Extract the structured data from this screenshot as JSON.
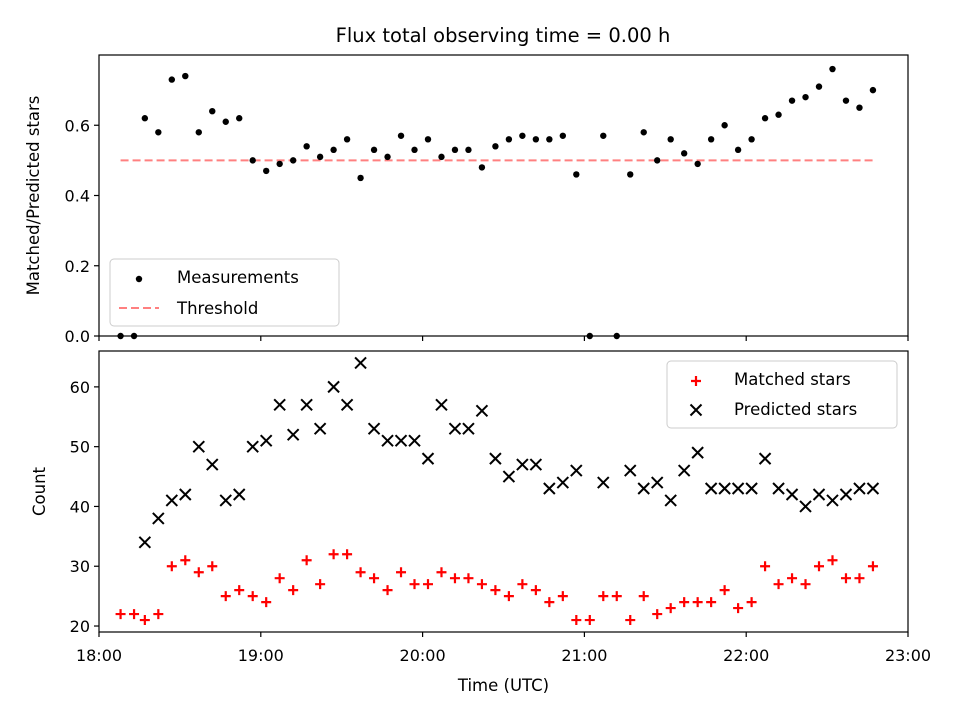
{
  "title": "Flux total observing time = 0.00 h",
  "chart_data": [
    {
      "type": "scatter",
      "ylabel": "Matched/Predicted stars",
      "ylim": [
        0,
        0.8
      ],
      "yticks": [
        0.0,
        0.2,
        0.4,
        0.6
      ],
      "ytick_labels": [
        "0.0",
        "0.2",
        "0.4",
        "0.6"
      ],
      "x": [
        "18:08",
        "18:13",
        "18:17",
        "18:22",
        "18:27",
        "18:32",
        "18:37",
        "18:42",
        "18:47",
        "18:52",
        "18:57",
        "19:02",
        "19:07",
        "19:12",
        "19:17",
        "19:22",
        "19:27",
        "19:32",
        "19:37",
        "19:42",
        "19:47",
        "19:52",
        "19:57",
        "20:02",
        "20:07",
        "20:12",
        "20:17",
        "20:22",
        "20:27",
        "20:32",
        "20:37",
        "20:42",
        "20:47",
        "20:52",
        "20:57",
        "21:02",
        "21:07",
        "21:12",
        "21:17",
        "21:22",
        "21:27",
        "21:32",
        "21:37",
        "21:42",
        "21:47",
        "21:52",
        "21:57",
        "22:02",
        "22:07",
        "22:12",
        "22:17",
        "22:22",
        "22:27",
        "22:32",
        "22:37",
        "22:42",
        "22:47"
      ],
      "series": [
        {
          "name": "Measurements",
          "color": "#000000",
          "marker": "dot",
          "values": [
            0.0,
            0.0,
            0.62,
            0.58,
            0.73,
            0.74,
            0.58,
            0.64,
            0.61,
            0.62,
            0.5,
            0.47,
            0.49,
            0.5,
            0.54,
            0.51,
            0.53,
            0.56,
            0.45,
            0.53,
            0.51,
            0.57,
            0.53,
            0.56,
            0.51,
            0.53,
            0.53,
            0.48,
            0.54,
            0.56,
            0.57,
            0.56,
            0.56,
            0.57,
            0.46,
            0.0,
            0.57,
            0.0,
            0.46,
            0.58,
            0.5,
            0.56,
            0.52,
            0.49,
            0.56,
            0.6,
            0.53,
            0.56,
            0.62,
            0.63,
            0.67,
            0.68,
            0.71,
            0.76,
            0.67,
            0.65,
            0.7
          ]
        },
        {
          "name": "Threshold",
          "color": "#ff8080",
          "style": "dashed",
          "x": [
            "18:08",
            "22:47"
          ],
          "values": [
            0.5,
            0.5
          ]
        }
      ],
      "legend_position": "lower-left"
    },
    {
      "type": "scatter",
      "ylabel": "Count",
      "xlabel": "Time (UTC)",
      "ylim": [
        19,
        66
      ],
      "yticks": [
        20,
        30,
        40,
        50,
        60
      ],
      "xlim": [
        "18:00",
        "23:00"
      ],
      "xticks": [
        "18:00",
        "19:00",
        "20:00",
        "21:00",
        "22:00",
        "23:00"
      ],
      "x": [
        "18:08",
        "18:13",
        "18:17",
        "18:22",
        "18:27",
        "18:32",
        "18:37",
        "18:42",
        "18:47",
        "18:52",
        "18:57",
        "19:02",
        "19:07",
        "19:12",
        "19:17",
        "19:22",
        "19:27",
        "19:32",
        "19:37",
        "19:42",
        "19:47",
        "19:52",
        "19:57",
        "20:02",
        "20:07",
        "20:12",
        "20:17",
        "20:22",
        "20:27",
        "20:32",
        "20:37",
        "20:42",
        "20:47",
        "20:52",
        "20:57",
        "21:02",
        "21:07",
        "21:12",
        "21:17",
        "21:22",
        "21:27",
        "21:32",
        "21:37",
        "21:42",
        "21:47",
        "21:52",
        "21:57",
        "22:02",
        "22:07",
        "22:12",
        "22:17",
        "22:22",
        "22:27",
        "22:32",
        "22:37",
        "22:42",
        "22:47"
      ],
      "series": [
        {
          "name": "Matched stars",
          "color": "#ff0000",
          "marker": "plus",
          "values": [
            22,
            22,
            21,
            22,
            30,
            31,
            29,
            30,
            25,
            26,
            25,
            24,
            28,
            26,
            31,
            27,
            32,
            32,
            29,
            28,
            26,
            29,
            27,
            27,
            29,
            28,
            28,
            27,
            26,
            25,
            27,
            26,
            24,
            25,
            21,
            21,
            25,
            25,
            21,
            25,
            22,
            23,
            24,
            24,
            24,
            26,
            23,
            24,
            30,
            27,
            28,
            27,
            30,
            31,
            28,
            28,
            30
          ]
        },
        {
          "name": "Predicted stars",
          "color": "#000000",
          "marker": "x",
          "values": [
            null,
            null,
            34,
            38,
            41,
            42,
            50,
            47,
            41,
            42,
            50,
            51,
            57,
            52,
            57,
            53,
            60,
            57,
            64,
            53,
            51,
            51,
            51,
            48,
            57,
            53,
            53,
            56,
            48,
            45,
            47,
            47,
            43,
            44,
            46,
            null,
            44,
            null,
            46,
            43,
            44,
            41,
            46,
            49,
            43,
            43,
            43,
            43,
            48,
            43,
            42,
            40,
            42,
            41,
            42,
            43,
            43
          ]
        }
      ],
      "legend_position": "upper-right"
    }
  ]
}
